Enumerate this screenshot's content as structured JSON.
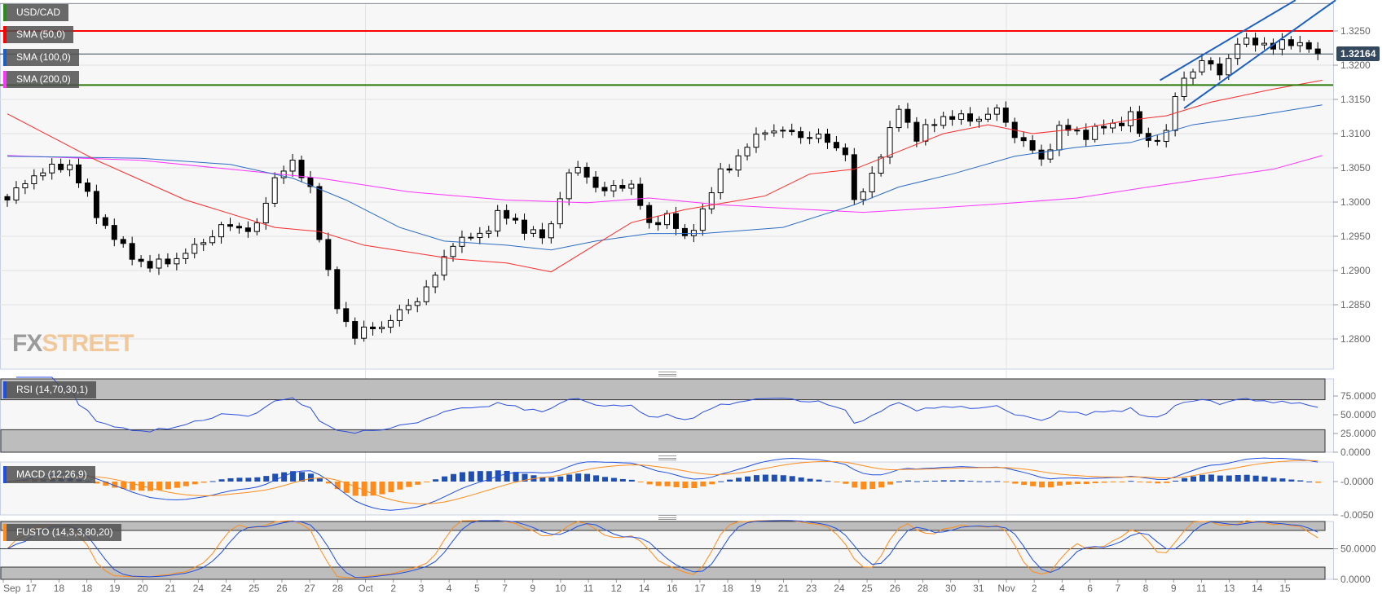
{
  "labels": {
    "symbol": "USD/CAD",
    "sma50": "SMA (50,0)",
    "sma100": "SMA (100,0)",
    "sma200": "SMA (200,0)",
    "rsi": "RSI (14,70,30,1)",
    "macd": "MACD (12,26,9)",
    "fusto": "FUSTO (14,3,3,80,20)",
    "current_price": "1.32164"
  },
  "watermark": {
    "part1": "FX",
    "part2": "STREET"
  },
  "colors": {
    "sma50": "#ff2a2a",
    "sma100": "#2b6cc4",
    "sma200": "#ff33ff",
    "resistance": "#ff0000",
    "support": "#2a7a0a",
    "channel": "#1c5fc0",
    "macd_line": "#1f4fe0",
    "signal_line": "#ff8c1a",
    "hist_pos": "#1f4fb0",
    "hist_neg": "#ff8c1a",
    "rsi_line": "#2b4fe0"
  },
  "chart_data": [
    {
      "type": "candlestick",
      "title": "USD/CAD",
      "ylim": [
        1.278,
        1.3295
      ],
      "yticks": [
        "1.3250",
        "1.3200",
        "1.3150",
        "1.3100",
        "1.3050",
        "1.3000",
        "1.2950",
        "1.2900",
        "1.2850",
        "1.2800"
      ],
      "xticks": [
        "Sep",
        "17",
        "18",
        "18",
        "19",
        "20",
        "21",
        "24",
        "24",
        "25",
        "26",
        "27",
        "28",
        "Oct",
        "2",
        "3",
        "4",
        "5",
        "7",
        "9",
        "10",
        "11",
        "12",
        "14",
        "16",
        "17",
        "18",
        "19",
        "21",
        "23",
        "24",
        "25",
        "26",
        "28",
        "30",
        "31",
        "Nov",
        "2",
        "4",
        "6",
        "7",
        "8",
        "9",
        "11",
        "13",
        "14",
        "15"
      ],
      "close_path": [
        [
          0,
          1.3003
        ],
        [
          3,
          1.3041
        ],
        [
          7,
          1.3055
        ],
        [
          10,
          1.2983
        ],
        [
          13,
          1.2931
        ],
        [
          16,
          1.2905
        ],
        [
          20,
          1.2924
        ],
        [
          24,
          1.2963
        ],
        [
          28,
          1.2963
        ],
        [
          30,
          1.3035
        ],
        [
          31.5,
          1.3061
        ],
        [
          34,
          1.3022
        ],
        [
          35.5,
          1.2917
        ],
        [
          37,
          1.2846
        ],
        [
          39,
          1.2806
        ],
        [
          42,
          1.282
        ],
        [
          45.5,
          1.2852
        ],
        [
          48,
          1.2891
        ],
        [
          50,
          1.2943
        ],
        [
          53,
          1.295
        ],
        [
          55,
          1.2983
        ],
        [
          58,
          1.2963
        ],
        [
          60.5,
          1.2943
        ],
        [
          62.5,
          1.3035
        ],
        [
          64,
          1.3048
        ],
        [
          67,
          1.3015
        ],
        [
          70,
          1.3028
        ],
        [
          72,
          1.2963
        ],
        [
          74,
          1.2983
        ],
        [
          76,
          1.2943
        ],
        [
          78,
          1.2989
        ],
        [
          80,
          1.3041
        ],
        [
          83,
          1.308
        ],
        [
          85,
          1.3107
        ],
        [
          88,
          1.31
        ],
        [
          91,
          1.3094
        ],
        [
          94,
          1.3074
        ],
        [
          95,
          1.2996
        ],
        [
          96.5,
          1.3028
        ],
        [
          99,
          1.31
        ],
        [
          100,
          1.3139
        ],
        [
          102,
          1.3094
        ],
        [
          105,
          1.3126
        ],
        [
          108,
          1.312
        ],
        [
          111,
          1.3133
        ],
        [
          113,
          1.31
        ],
        [
          116,
          1.3061
        ],
        [
          118,
          1.3107
        ],
        [
          121,
          1.31
        ],
        [
          124,
          1.3113
        ],
        [
          126,
          1.3126
        ],
        [
          127.5,
          1.3087
        ],
        [
          130,
          1.31
        ],
        [
          131.5,
          1.3178
        ],
        [
          134,
          1.3204
        ],
        [
          136,
          1.3191
        ],
        [
          138,
          1.323
        ],
        [
          140,
          1.3237
        ],
        [
          142,
          1.3224
        ],
        [
          144,
          1.3237
        ],
        [
          146,
          1.3224
        ],
        [
          147.5,
          1.32164
        ]
      ],
      "sma_50": [
        [
          0,
          1.3129
        ],
        [
          10,
          1.3061
        ],
        [
          20,
          1.3003
        ],
        [
          30,
          1.2963
        ],
        [
          35,
          1.2957
        ],
        [
          40,
          1.2937
        ],
        [
          50,
          1.2917
        ],
        [
          56,
          1.2911
        ],
        [
          61,
          1.2898
        ],
        [
          65,
          1.293
        ],
        [
          70,
          1.297
        ],
        [
          76,
          1.2989
        ],
        [
          85,
          1.3009
        ],
        [
          90,
          1.3041
        ],
        [
          95,
          1.3048
        ],
        [
          100,
          1.3074
        ],
        [
          105,
          1.31
        ],
        [
          110,
          1.3113
        ],
        [
          115,
          1.31
        ],
        [
          120,
          1.3107
        ],
        [
          126,
          1.312
        ],
        [
          130,
          1.3126
        ],
        [
          135,
          1.3146
        ],
        [
          142,
          1.3165
        ],
        [
          147.5,
          1.3178
        ]
      ],
      "sma_100": [
        [
          0,
          1.3067
        ],
        [
          15,
          1.3064
        ],
        [
          25,
          1.3055
        ],
        [
          32,
          1.3035
        ],
        [
          38,
          1.3003
        ],
        [
          44,
          1.2963
        ],
        [
          49,
          1.2943
        ],
        [
          56,
          1.2937
        ],
        [
          61,
          1.293
        ],
        [
          66,
          1.2943
        ],
        [
          72,
          1.2954
        ],
        [
          78,
          1.2954
        ],
        [
          87,
          1.2963
        ],
        [
          95,
          1.2996
        ],
        [
          100,
          1.3022
        ],
        [
          106,
          1.3041
        ],
        [
          113,
          1.3067
        ],
        [
          120,
          1.308
        ],
        [
          126,
          1.3087
        ],
        [
          133,
          1.3113
        ],
        [
          140,
          1.3126
        ],
        [
          147.5,
          1.3142
        ]
      ],
      "sma_200": [
        [
          0,
          1.3068
        ],
        [
          15,
          1.3061
        ],
        [
          25,
          1.3048
        ],
        [
          35,
          1.3035
        ],
        [
          45,
          1.3015
        ],
        [
          56,
          1.3003
        ],
        [
          65,
          1.2999
        ],
        [
          72,
          1.3006
        ],
        [
          80,
          1.2996
        ],
        [
          90,
          1.2989
        ],
        [
          96,
          1.2985
        ],
        [
          105,
          1.2992
        ],
        [
          113,
          1.2999
        ],
        [
          120,
          1.3006
        ],
        [
          128,
          1.3022
        ],
        [
          135,
          1.3035
        ],
        [
          142,
          1.3048
        ],
        [
          147.5,
          1.3068
        ]
      ],
      "resistance_level": 1.325,
      "support_level": 1.3171,
      "current_price": 1.32164,
      "channel_lower": [
        [
          132,
          1.3137
        ],
        [
          149,
          1.3295
        ]
      ],
      "channel_upper": [
        [
          129.3,
          1.3178
        ],
        [
          144.5,
          1.3295
        ]
      ]
    },
    {
      "type": "line",
      "title": "RSI (14,70,30,1)",
      "ylim": [
        0,
        100
      ],
      "yticks": [
        "75.0000",
        "50.0000",
        "25.0000",
        "0.0000"
      ],
      "bands": [
        30,
        70
      ]
    },
    {
      "type": "bar+line",
      "title": "MACD (12,26,9)",
      "ylim": [
        -0.0055,
        0.0025
      ],
      "yticks": [
        "-0.0000",
        "-0.0050"
      ]
    },
    {
      "type": "line",
      "title": "FUSTO (14,3,3,80,20)",
      "ylim": [
        0,
        100
      ],
      "yticks": [
        "50.0000",
        "0.0000"
      ],
      "bands": [
        20,
        80
      ]
    }
  ]
}
